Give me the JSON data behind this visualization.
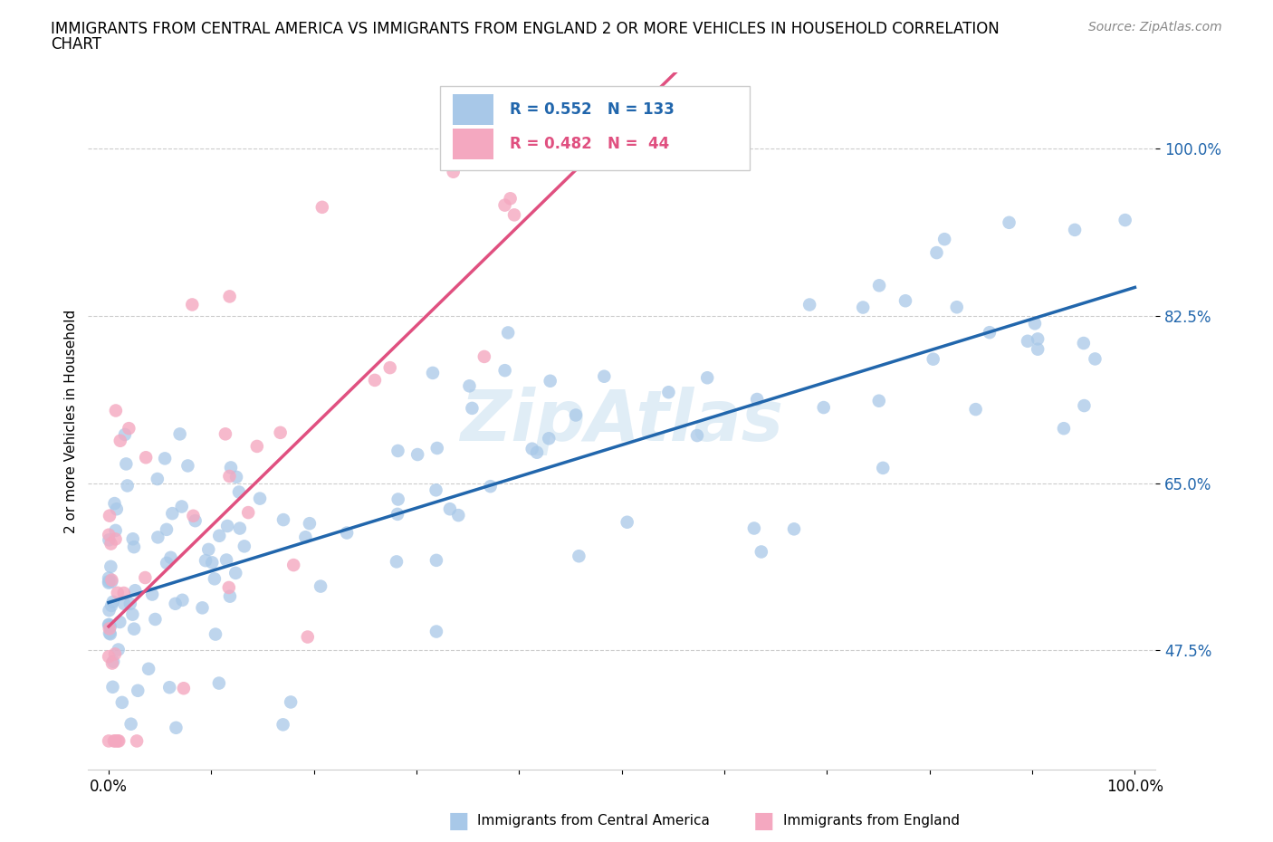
{
  "title_line1": "IMMIGRANTS FROM CENTRAL AMERICA VS IMMIGRANTS FROM ENGLAND 2 OR MORE VEHICLES IN HOUSEHOLD CORRELATION",
  "title_line2": "CHART",
  "source": "Source: ZipAtlas.com",
  "ylabel": "2 or more Vehicles in Household",
  "xlim": [
    -0.02,
    1.02
  ],
  "ylim": [
    0.35,
    1.08
  ],
  "yticks": [
    0.475,
    0.65,
    0.825,
    1.0
  ],
  "ytick_labels": [
    "47.5%",
    "65.0%",
    "82.5%",
    "100.0%"
  ],
  "xtick_positions": [
    0.0,
    0.1,
    0.2,
    0.3,
    0.4,
    0.5,
    0.6,
    0.7,
    0.8,
    0.9,
    1.0
  ],
  "xtick_labels_show": [
    "0.0%",
    "",
    "",
    "",
    "",
    "",
    "",
    "",
    "",
    "",
    "100.0%"
  ],
  "blue_color": "#a8c8e8",
  "pink_color": "#f4a8c0",
  "blue_line_color": "#2166ac",
  "pink_line_color": "#e05080",
  "R_blue": 0.552,
  "N_blue": 133,
  "R_pink": 0.482,
  "N_pink": 44,
  "blue_slope": 0.33,
  "blue_intercept": 0.525,
  "pink_slope": 1.05,
  "pink_intercept": 0.5,
  "blue_line_x": [
    0.0,
    1.0
  ],
  "pink_line_x": [
    0.0,
    0.56
  ]
}
